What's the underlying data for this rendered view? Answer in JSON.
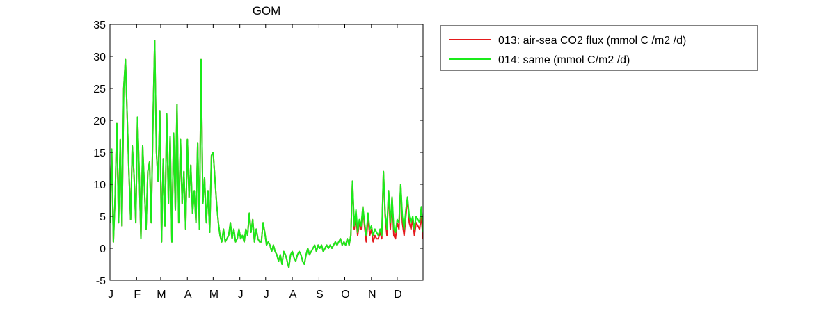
{
  "chart_data": {
    "type": "line",
    "title": "GOM",
    "xlabel": "",
    "ylabel": "",
    "xlim": [
      1,
      365
    ],
    "ylim": [
      -5,
      35
    ],
    "grid": false,
    "legend_position": "outside-right-top",
    "yticks": [
      -5,
      0,
      5,
      10,
      15,
      20,
      25,
      30,
      35
    ],
    "xticks": [
      {
        "label": "J",
        "day": 1
      },
      {
        "label": "F",
        "day": 32
      },
      {
        "label": "M",
        "day": 60
      },
      {
        "label": "A",
        "day": 91
      },
      {
        "label": "M",
        "day": 121
      },
      {
        "label": "J",
        "day": 152
      },
      {
        "label": "J",
        "day": 182
      },
      {
        "label": "A",
        "day": 213
      },
      {
        "label": "S",
        "day": 244
      },
      {
        "label": "O",
        "day": 274
      },
      {
        "label": "N",
        "day": 305
      },
      {
        "label": "D",
        "day": 335
      }
    ],
    "series": [
      {
        "name": "013: air-sea CO2 flux (mmol C /m2 /d)",
        "color": "#e41a1c",
        "x": [
          1,
          3,
          5,
          7,
          9,
          11,
          13,
          15,
          17,
          19,
          21,
          23,
          25,
          27,
          29,
          31,
          33,
          35,
          37,
          39,
          41,
          43,
          45,
          47,
          49,
          51,
          53,
          55,
          57,
          59,
          61,
          63,
          65,
          67,
          69,
          71,
          73,
          75,
          77,
          79,
          81,
          83,
          85,
          87,
          89,
          91,
          93,
          95,
          97,
          99,
          101,
          103,
          105,
          107,
          109,
          111,
          113,
          115,
          117,
          119,
          121,
          123,
          125,
          127,
          129,
          131,
          133,
          135,
          137,
          139,
          141,
          143,
          145,
          147,
          149,
          151,
          153,
          155,
          157,
          159,
          161,
          163,
          165,
          167,
          169,
          171,
          173,
          175,
          177,
          179,
          181,
          183,
          185,
          187,
          189,
          191,
          193,
          195,
          197,
          199,
          201,
          203,
          205,
          207,
          209,
          211,
          213,
          215,
          217,
          219,
          221,
          223,
          225,
          227,
          229,
          231,
          233,
          235,
          237,
          239,
          241,
          243,
          245,
          247,
          249,
          251,
          253,
          255,
          257,
          259,
          261,
          263,
          265,
          267,
          269,
          271,
          273,
          275,
          277,
          279,
          281,
          283,
          285,
          287,
          289,
          291,
          293,
          295,
          297,
          299,
          301,
          303,
          305,
          307,
          309,
          311,
          313,
          315,
          317,
          319,
          321,
          323,
          325,
          327,
          329,
          331,
          333,
          335,
          337,
          339,
          341,
          343,
          345,
          347,
          349,
          351,
          353,
          355,
          357,
          359,
          361,
          363,
          365
        ],
        "y": [
          4,
          15.5,
          1,
          8,
          19.5,
          4,
          17,
          3.5,
          25,
          29.5,
          21,
          12,
          4.5,
          16,
          11.5,
          4,
          20.5,
          12,
          1.5,
          16,
          9.5,
          3,
          12,
          13.5,
          4,
          19.5,
          32.5,
          15,
          10.5,
          21.5,
          1,
          14,
          3.5,
          21,
          7,
          17.5,
          1,
          18,
          6,
          22.5,
          4,
          17,
          7,
          12,
          3,
          17,
          8,
          13,
          5.5,
          9,
          4,
          16.5,
          3,
          29.5,
          7,
          11,
          4,
          9,
          2.5,
          14.5,
          15,
          11,
          7,
          4,
          2,
          1,
          3,
          1,
          1.5,
          2,
          4,
          1.5,
          3,
          1,
          1.5,
          3,
          1.5,
          2,
          1,
          3,
          2,
          5.5,
          2.5,
          4.5,
          1,
          3,
          1.5,
          1,
          1,
          4,
          2.5,
          0.5,
          1,
          0.5,
          -0.5,
          0.5,
          -0.5,
          -1,
          -2,
          -1,
          -2.5,
          -0.5,
          -1,
          -2,
          -3,
          -1,
          -0.5,
          -1.5,
          -2,
          -1,
          -0.5,
          -1,
          -2,
          -2.5,
          -1,
          0,
          -1,
          -0.5,
          0,
          0.5,
          -0.5,
          0.5,
          0,
          0.5,
          -0.5,
          0,
          0.5,
          0,
          0.5,
          0,
          0.5,
          1,
          0.5,
          1,
          1.5,
          0.5,
          1,
          0.5,
          1.5,
          0.5,
          2,
          10.5,
          3,
          5,
          2,
          4,
          3,
          6.5,
          3.5,
          1,
          5,
          2,
          3,
          1,
          2,
          1.5,
          1.5,
          2.5,
          1.5,
          12,
          5,
          2,
          9,
          3,
          8,
          2,
          1.5,
          4,
          3,
          10,
          4,
          2,
          5,
          8,
          4,
          3,
          4.5,
          2,
          4,
          3.5,
          3,
          5,
          1.5
        ]
      },
      {
        "name": "014: same (mmol C/m2 /d)",
        "color": "#1aeb1a",
        "x": [
          1,
          3,
          5,
          7,
          9,
          11,
          13,
          15,
          17,
          19,
          21,
          23,
          25,
          27,
          29,
          31,
          33,
          35,
          37,
          39,
          41,
          43,
          45,
          47,
          49,
          51,
          53,
          55,
          57,
          59,
          61,
          63,
          65,
          67,
          69,
          71,
          73,
          75,
          77,
          79,
          81,
          83,
          85,
          87,
          89,
          91,
          93,
          95,
          97,
          99,
          101,
          103,
          105,
          107,
          109,
          111,
          113,
          115,
          117,
          119,
          121,
          123,
          125,
          127,
          129,
          131,
          133,
          135,
          137,
          139,
          141,
          143,
          145,
          147,
          149,
          151,
          153,
          155,
          157,
          159,
          161,
          163,
          165,
          167,
          169,
          171,
          173,
          175,
          177,
          179,
          181,
          183,
          185,
          187,
          189,
          191,
          193,
          195,
          197,
          199,
          201,
          203,
          205,
          207,
          209,
          211,
          213,
          215,
          217,
          219,
          221,
          223,
          225,
          227,
          229,
          231,
          233,
          235,
          237,
          239,
          241,
          243,
          245,
          247,
          249,
          251,
          253,
          255,
          257,
          259,
          261,
          263,
          265,
          267,
          269,
          271,
          273,
          275,
          277,
          279,
          281,
          283,
          285,
          287,
          289,
          291,
          293,
          295,
          297,
          299,
          301,
          303,
          305,
          307,
          309,
          311,
          313,
          315,
          317,
          319,
          321,
          323,
          325,
          327,
          329,
          331,
          333,
          335,
          337,
          339,
          341,
          343,
          345,
          347,
          349,
          351,
          353,
          355,
          357,
          359,
          361,
          363,
          365
        ],
        "y": [
          4,
          15.5,
          1,
          8,
          19.5,
          4,
          17,
          3.5,
          25,
          29.5,
          21,
          12,
          4.5,
          16,
          11.5,
          4,
          20.5,
          12,
          1.5,
          16,
          9.5,
          3,
          12,
          13.5,
          4,
          19.5,
          32.5,
          15,
          10.5,
          21.5,
          1,
          14,
          3.5,
          21,
          7,
          17.5,
          1,
          18,
          6,
          22.5,
          4,
          17,
          7,
          12,
          3,
          17,
          8,
          13,
          5.5,
          9,
          4,
          16.5,
          3,
          29.5,
          7,
          11,
          4,
          9,
          2.5,
          14.5,
          15,
          11,
          7,
          4,
          2,
          1,
          3,
          1,
          1.5,
          2,
          4,
          1.5,
          3,
          1,
          1.5,
          3,
          1.5,
          2,
          1,
          3,
          2,
          5.5,
          2.5,
          4.5,
          1,
          3,
          1.5,
          1,
          1,
          4,
          2.5,
          0.5,
          1,
          0.5,
          -0.5,
          0.5,
          -0.5,
          -1,
          -2,
          -1,
          -2.5,
          -0.5,
          -1,
          -2,
          -3,
          -1,
          -0.5,
          -1.5,
          -2,
          -1,
          -0.5,
          -1,
          -2,
          -2.5,
          -1,
          0,
          -1,
          -0.5,
          0,
          0.5,
          -0.5,
          0.5,
          0,
          0.5,
          -0.5,
          0,
          0.5,
          0,
          0.5,
          0,
          0.5,
          1,
          0.5,
          1,
          1.5,
          0.5,
          1,
          0.5,
          1.5,
          0.5,
          2,
          10.5,
          3.5,
          6,
          2.5,
          4.5,
          3.5,
          6.5,
          4,
          2,
          5.5,
          3,
          3.5,
          2,
          3,
          2.5,
          2,
          3,
          2,
          12,
          5.5,
          3,
          9,
          4,
          8,
          3,
          2.5,
          4.5,
          4,
          10,
          5,
          3,
          6,
          8,
          5,
          4,
          5,
          3,
          5,
          4.5,
          4,
          6.5,
          2.5
        ]
      }
    ]
  }
}
